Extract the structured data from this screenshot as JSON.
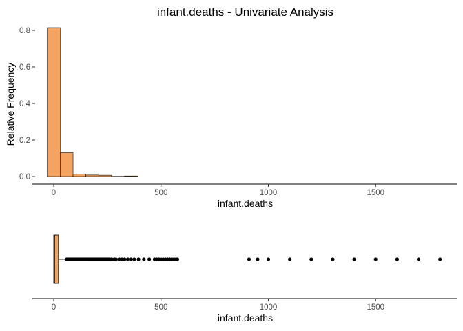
{
  "chart_data": [
    {
      "type": "bar",
      "title": "infant.deaths - Univariate Analysis",
      "xlabel": "infant.deaths",
      "ylabel": "Relative Frequency",
      "xlim": [
        -90,
        1900
      ],
      "ylim": [
        0,
        0.85
      ],
      "xticks": [
        0,
        500,
        1000,
        1500
      ],
      "yticks": [
        0.0,
        0.2,
        0.4,
        0.6,
        0.8
      ],
      "ytick_labels": [
        "0.0",
        "0.2",
        "0.4",
        "0.6",
        "0.8"
      ],
      "bin_width": 60,
      "bins": [
        {
          "x0": -30,
          "x1": 30,
          "value": 0.815
        },
        {
          "x0": 30,
          "x1": 90,
          "value": 0.13
        },
        {
          "x0": 90,
          "x1": 150,
          "value": 0.013
        },
        {
          "x0": 150,
          "x1": 210,
          "value": 0.008
        },
        {
          "x0": 210,
          "x1": 270,
          "value": 0.007
        },
        {
          "x0": 270,
          "x1": 330,
          "value": 0.001
        },
        {
          "x0": 330,
          "x1": 390,
          "value": 0.003
        },
        {
          "x0": 390,
          "x1": 1830,
          "value": 0.0
        }
      ],
      "fill_color": "#F4A460",
      "grid": false
    },
    {
      "type": "boxplot",
      "xlabel": "infant.deaths",
      "xlim": [
        -90,
        1900
      ],
      "xticks": [
        0,
        500,
        1000,
        1500
      ],
      "box": {
        "q1": 0,
        "median": 3,
        "q3": 22,
        "whisker_low": 0,
        "whisker_high": 55
      },
      "outliers": [
        60,
        65,
        70,
        75,
        80,
        85,
        90,
        95,
        100,
        105,
        110,
        115,
        120,
        125,
        130,
        135,
        140,
        145,
        150,
        155,
        160,
        165,
        170,
        175,
        180,
        185,
        190,
        195,
        200,
        205,
        210,
        215,
        220,
        225,
        230,
        235,
        240,
        245,
        250,
        255,
        262,
        270,
        282,
        290,
        305,
        318,
        330,
        345,
        360,
        375,
        395,
        420,
        445,
        470,
        480,
        490,
        500,
        510,
        520,
        530,
        540,
        550,
        560,
        570,
        576,
        910,
        950,
        1000,
        1100,
        1200,
        1300,
        1400,
        1500,
        1600,
        1700,
        1800
      ],
      "fill_color": "#F4A460"
    }
  ]
}
